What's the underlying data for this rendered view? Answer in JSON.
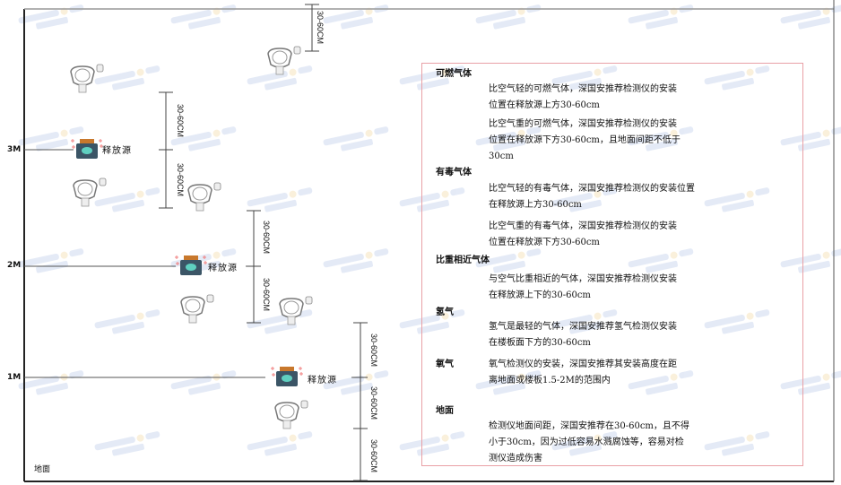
{
  "watermark": {
    "brand": "SINGOAN",
    "chinese": "深国安"
  },
  "levels": [
    "3M",
    "2M",
    "1M"
  ],
  "ground_label": "地面",
  "source_label": "释放源",
  "dimension_label": "30-60CM",
  "colors": {
    "frame": "#222222",
    "box_border": "#e9a0a6",
    "source_body": "#3b5566",
    "source_cap": "#c8782c",
    "source_face": "#5fd0c0"
  },
  "notes": {
    "combustible": {
      "title": "可燃气体",
      "light": [
        "比空气轻的可燃气体，深国安推荐检测仪的安装",
        "位置在释放源上方30-60cm"
      ],
      "heavy": [
        "比空气重的可燃气体，深国安推荐检测仪的安装",
        "位置在释放源下方30-60cm，且地面间距不低于",
        "30cm"
      ]
    },
    "toxic": {
      "title": "有毒气体",
      "light": [
        "比空气轻的有毒气体，深国安推荐检测仪的安装位置",
        "在释放源上方30-60cm"
      ],
      "heavy": [
        "比空气重的有毒气体，深国安推荐检测仪的安装",
        "位置在释放源下方30-60cm"
      ]
    },
    "similar": {
      "title": "比重相近气体",
      "text": [
        "与空气比重相近的气体，深国安推荐检测仪安装",
        "在释放源上下的30-60cm"
      ]
    },
    "hydrogen": {
      "title": "氢气",
      "text": [
        "氢气是最轻的气体，深国安推荐氢气检测仪安装",
        "在楼板面下方的30-60cm"
      ]
    },
    "oxygen": {
      "title": "氧气",
      "text": [
        "氧气检测仪的安装，深国安推荐其安装高度在距",
        "离地面或楼板1.5-2M的范围内"
      ]
    },
    "ground": {
      "title": "地面",
      "text": [
        "检测仪地面间距，深国安推荐在30-60cm，且不得",
        "小于30cm，因为过低容易水溅腐蚀等，容易对检",
        "测仪造成伤害"
      ]
    }
  }
}
